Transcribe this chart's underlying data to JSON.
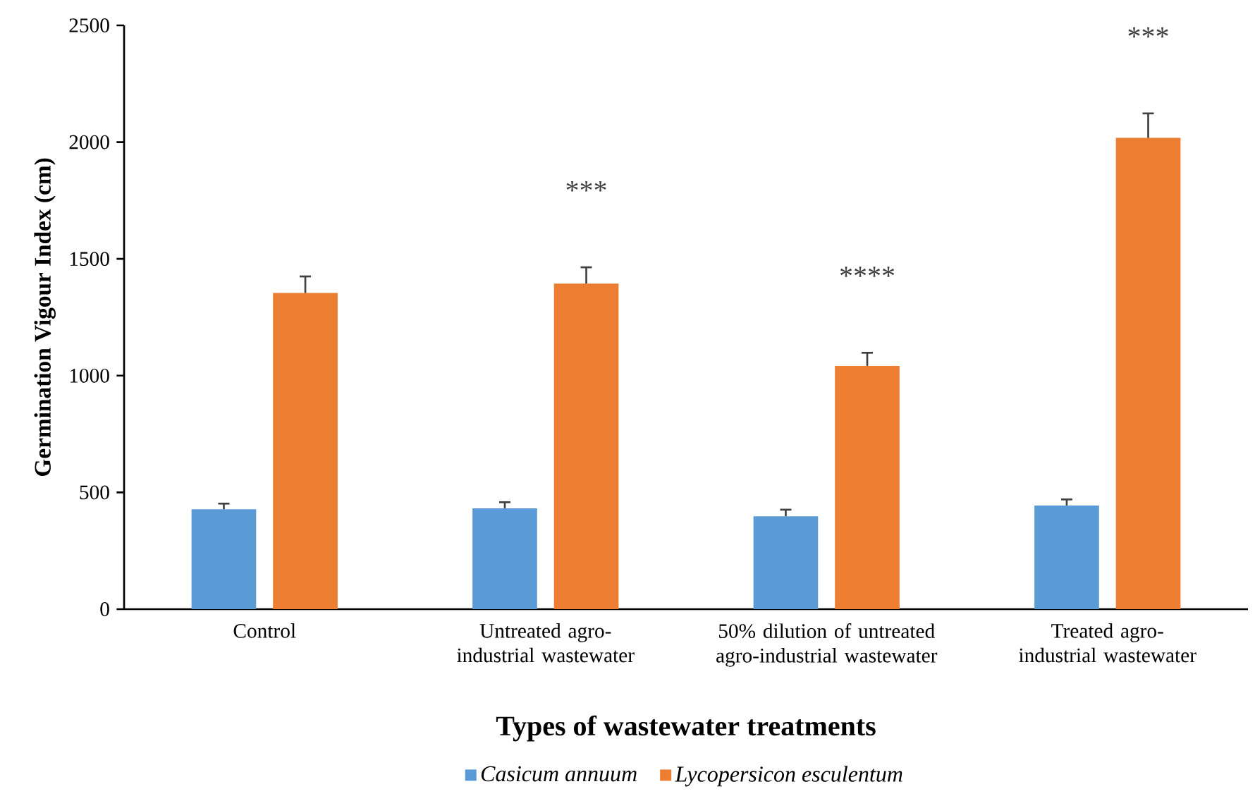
{
  "chart_data": {
    "type": "bar",
    "xlabel": "Types of wastewater treatments",
    "ylabel": "Germination Vigour Index (cm)",
    "categories": [
      "Control",
      "Untreated agro-industrial wastewater",
      "50% dilution of untreated agro-industrial wastewater",
      "Treated agro-industrial wastewater"
    ],
    "series": [
      {
        "name": "Casicum annuum",
        "color": "#5b9bd5",
        "values": [
          428,
          432,
          398,
          444
        ],
        "errors": [
          24,
          26,
          28,
          26
        ]
      },
      {
        "name": "Lycopersicon esculentum",
        "color": "#ed7d31",
        "values": [
          1354,
          1394,
          1042,
          2018
        ],
        "errors": [
          71,
          70,
          56,
          105
        ]
      }
    ],
    "ylim": [
      0,
      2500
    ],
    "yticks": [
      0,
      500,
      1000,
      1500,
      2000,
      2500
    ],
    "legend": "bottom",
    "annotations": [
      "***",
      "****",
      "***"
    ]
  }
}
